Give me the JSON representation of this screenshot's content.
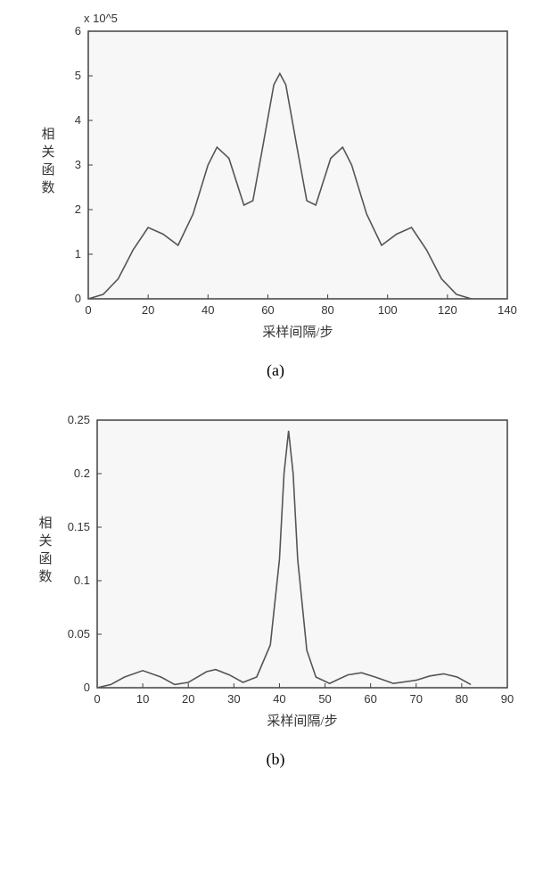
{
  "chart_a": {
    "type": "line",
    "sublabel": "(a)",
    "y_exponent_label": "x 10^5",
    "ylabel_chars": [
      "相",
      "关",
      "函",
      "数"
    ],
    "xlabel": "采样间隔/步",
    "xlim": [
      0,
      140
    ],
    "ylim": [
      0,
      6
    ],
    "xticks": [
      0,
      20,
      40,
      60,
      80,
      100,
      120,
      140
    ],
    "yticks": [
      0,
      1,
      2,
      3,
      4,
      5,
      6
    ],
    "background_color": "#f7f7f7",
    "curve_color": "#555555",
    "line_width": 1.6,
    "data": [
      [
        0,
        0.0
      ],
      [
        5,
        0.1
      ],
      [
        10,
        0.45
      ],
      [
        15,
        1.1
      ],
      [
        20,
        1.6
      ],
      [
        25,
        1.45
      ],
      [
        30,
        1.2
      ],
      [
        35,
        1.9
      ],
      [
        40,
        3.0
      ],
      [
        43,
        3.4
      ],
      [
        47,
        3.15
      ],
      [
        52,
        2.1
      ],
      [
        55,
        2.2
      ],
      [
        58,
        3.3
      ],
      [
        62,
        4.8
      ],
      [
        64,
        5.05
      ],
      [
        66,
        4.8
      ],
      [
        70,
        3.3
      ],
      [
        73,
        2.2
      ],
      [
        76,
        2.1
      ],
      [
        81,
        3.15
      ],
      [
        85,
        3.4
      ],
      [
        88,
        3.0
      ],
      [
        93,
        1.9
      ],
      [
        98,
        1.2
      ],
      [
        103,
        1.45
      ],
      [
        108,
        1.6
      ],
      [
        113,
        1.1
      ],
      [
        118,
        0.45
      ],
      [
        123,
        0.1
      ],
      [
        128,
        0.0
      ]
    ]
  },
  "chart_b": {
    "type": "line",
    "sublabel": "(b)",
    "ylabel_chars": [
      "相",
      "关",
      "函",
      "数"
    ],
    "xlabel": "采样间隔/步",
    "xlim": [
      0,
      90
    ],
    "ylim": [
      0,
      0.25
    ],
    "xticks": [
      0,
      10,
      20,
      30,
      40,
      50,
      60,
      70,
      80,
      90
    ],
    "yticks": [
      0,
      0.05,
      0.1,
      0.15,
      0.2,
      0.25
    ],
    "background_color": "#f7f7f7",
    "curve_color": "#555555",
    "line_width": 1.6,
    "data": [
      [
        0,
        0.0
      ],
      [
        3,
        0.003
      ],
      [
        6,
        0.01
      ],
      [
        10,
        0.016
      ],
      [
        14,
        0.01
      ],
      [
        17,
        0.003
      ],
      [
        20,
        0.005
      ],
      [
        24,
        0.015
      ],
      [
        26,
        0.017
      ],
      [
        29,
        0.012
      ],
      [
        32,
        0.005
      ],
      [
        35,
        0.01
      ],
      [
        38,
        0.04
      ],
      [
        40,
        0.12
      ],
      [
        41,
        0.2
      ],
      [
        42,
        0.24
      ],
      [
        43,
        0.2
      ],
      [
        44,
        0.12
      ],
      [
        46,
        0.035
      ],
      [
        48,
        0.01
      ],
      [
        51,
        0.004
      ],
      [
        55,
        0.012
      ],
      [
        58,
        0.014
      ],
      [
        61,
        0.01
      ],
      [
        65,
        0.004
      ],
      [
        70,
        0.007
      ],
      [
        73,
        0.011
      ],
      [
        76,
        0.013
      ],
      [
        79,
        0.01
      ],
      [
        82,
        0.003
      ]
    ]
  }
}
